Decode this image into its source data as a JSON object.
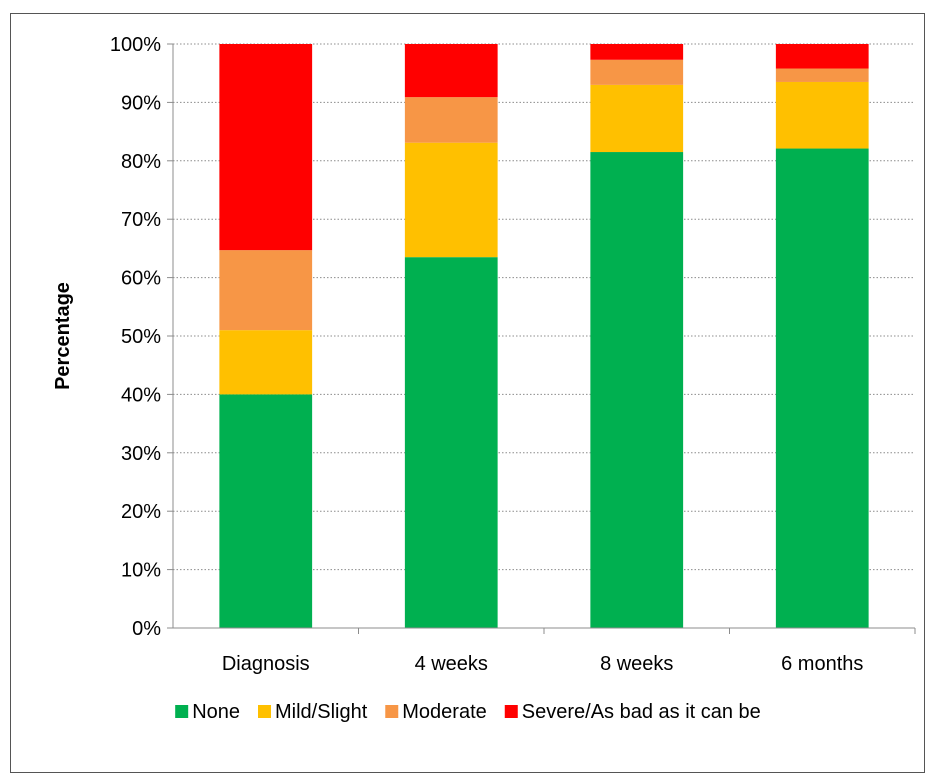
{
  "chart_data": {
    "type": "bar",
    "stacked": true,
    "title": "",
    "xlabel": "",
    "ylabel": "Percentage",
    "ylim": [
      0,
      100
    ],
    "y_ticks": [
      "0%",
      "10%",
      "20%",
      "30%",
      "40%",
      "50%",
      "60%",
      "70%",
      "80%",
      "90%",
      "100%"
    ],
    "grid": true,
    "legend_position": "bottom",
    "categories": [
      "Diagnosis",
      "4 weeks",
      "8 weeks",
      "6 months"
    ],
    "series": [
      {
        "name": "None",
        "color": "#00b050",
        "values": [
          40.0,
          63.5,
          81.5,
          82.1
        ]
      },
      {
        "name": "Mild/Slight",
        "color": "#ffc000",
        "values": [
          11.0,
          19.6,
          11.5,
          11.4
        ]
      },
      {
        "name": "Moderate",
        "color": "#f79646",
        "values": [
          13.7,
          7.8,
          4.3,
          2.3
        ]
      },
      {
        "name": "Severe/As bad as it can be",
        "color": "#ff0000",
        "values": [
          35.3,
          9.1,
          2.7,
          4.2
        ]
      }
    ]
  }
}
